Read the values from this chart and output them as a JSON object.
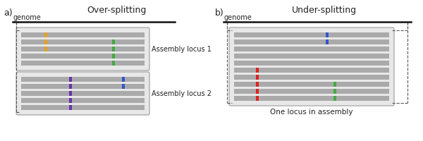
{
  "title_a": "Over-splitting",
  "title_b": "Under-splitting",
  "label_a": "a)",
  "label_b": "b)",
  "genome_label": "genome",
  "assembly_locus_1": "Assembly locus 1",
  "assembly_locus_2": "Assembly locus 2",
  "one_locus": "One locus in assembly",
  "bg_color": "#ffffff",
  "read_color": "#aaaaaa",
  "box_bg_color": "#e8e8e8",
  "box_edge_color": "#999999",
  "genome_line_color": "#111111",
  "dashed_color": "#555555",
  "orange": "#e8a020",
  "green": "#44aa44",
  "purple": "#6633aa",
  "blue_dark": "#3355cc",
  "red": "#dd2222",
  "blue_mid": "#3355cc"
}
